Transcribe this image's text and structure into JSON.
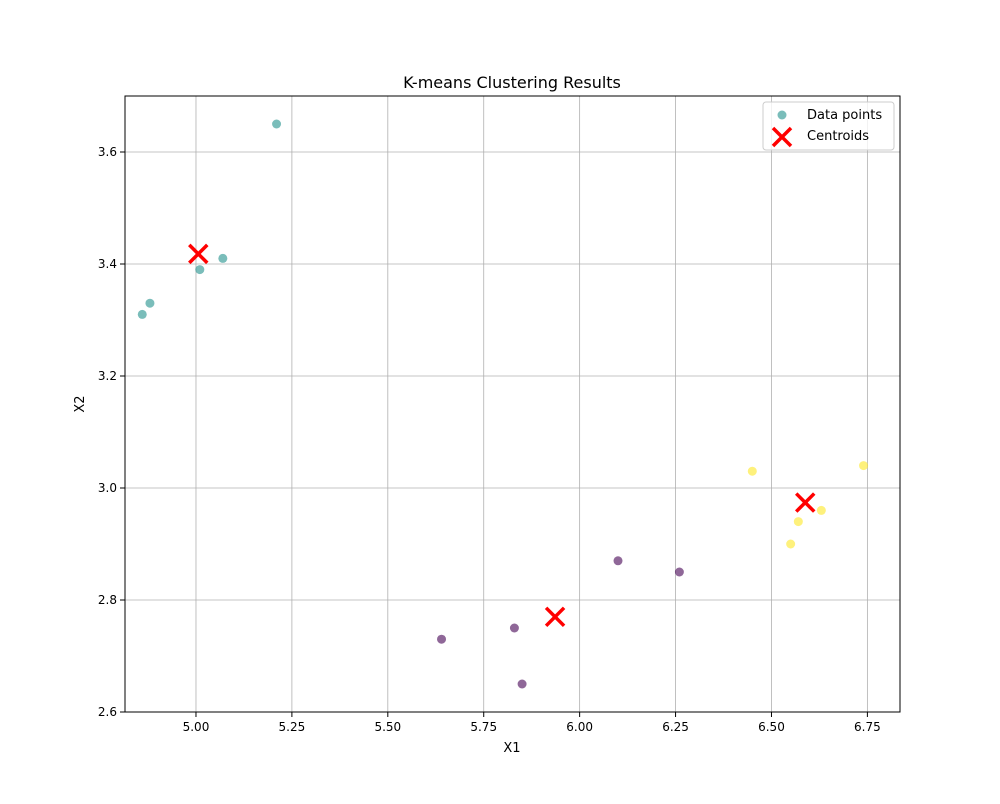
{
  "chart_data": {
    "type": "scatter",
    "title": "K-means Clustering Results",
    "xlabel": "X1",
    "ylabel": "X2",
    "xlim": [
      4.815,
      6.835
    ],
    "ylim": [
      2.6,
      3.7
    ],
    "xticks": [
      5.0,
      5.25,
      5.5,
      5.75,
      6.0,
      6.25,
      6.5,
      6.75
    ],
    "xtick_labels": [
      "5.00",
      "5.25",
      "5.50",
      "5.75",
      "6.00",
      "6.25",
      "6.50",
      "6.75"
    ],
    "yticks": [
      2.6,
      2.8,
      3.0,
      3.2,
      3.4,
      3.6
    ],
    "ytick_labels": [
      "2.6",
      "2.8",
      "3.0",
      "3.2",
      "3.4",
      "3.6"
    ],
    "grid": true,
    "legend": {
      "position": "top-right",
      "entries": [
        {
          "label": "Data points",
          "marker": "circle",
          "color": "#21918c"
        },
        {
          "label": "Centroids",
          "marker": "x",
          "color": "#ff0000"
        }
      ]
    },
    "cluster_colors": [
      "#440154",
      "#21918c",
      "#fde725"
    ],
    "centroid_color": "#ff0000",
    "points": [
      {
        "x": 5.21,
        "y": 3.65,
        "cluster": 1
      },
      {
        "x": 5.07,
        "y": 3.41,
        "cluster": 1
      },
      {
        "x": 5.01,
        "y": 3.39,
        "cluster": 1
      },
      {
        "x": 4.88,
        "y": 3.33,
        "cluster": 1
      },
      {
        "x": 4.86,
        "y": 3.31,
        "cluster": 1
      },
      {
        "x": 6.45,
        "y": 3.03,
        "cluster": 2
      },
      {
        "x": 6.74,
        "y": 3.04,
        "cluster": 2
      },
      {
        "x": 6.63,
        "y": 2.96,
        "cluster": 2
      },
      {
        "x": 6.57,
        "y": 2.94,
        "cluster": 2
      },
      {
        "x": 6.55,
        "y": 2.9,
        "cluster": 2
      },
      {
        "x": 6.1,
        "y": 2.87,
        "cluster": 0
      },
      {
        "x": 6.26,
        "y": 2.85,
        "cluster": 0
      },
      {
        "x": 5.64,
        "y": 2.73,
        "cluster": 0
      },
      {
        "x": 5.83,
        "y": 2.75,
        "cluster": 0
      },
      {
        "x": 5.85,
        "y": 2.65,
        "cluster": 0
      }
    ],
    "centroids": [
      {
        "x": 5.006,
        "y": 3.418
      },
      {
        "x": 5.936,
        "y": 2.77
      },
      {
        "x": 6.588,
        "y": 2.974
      }
    ]
  }
}
